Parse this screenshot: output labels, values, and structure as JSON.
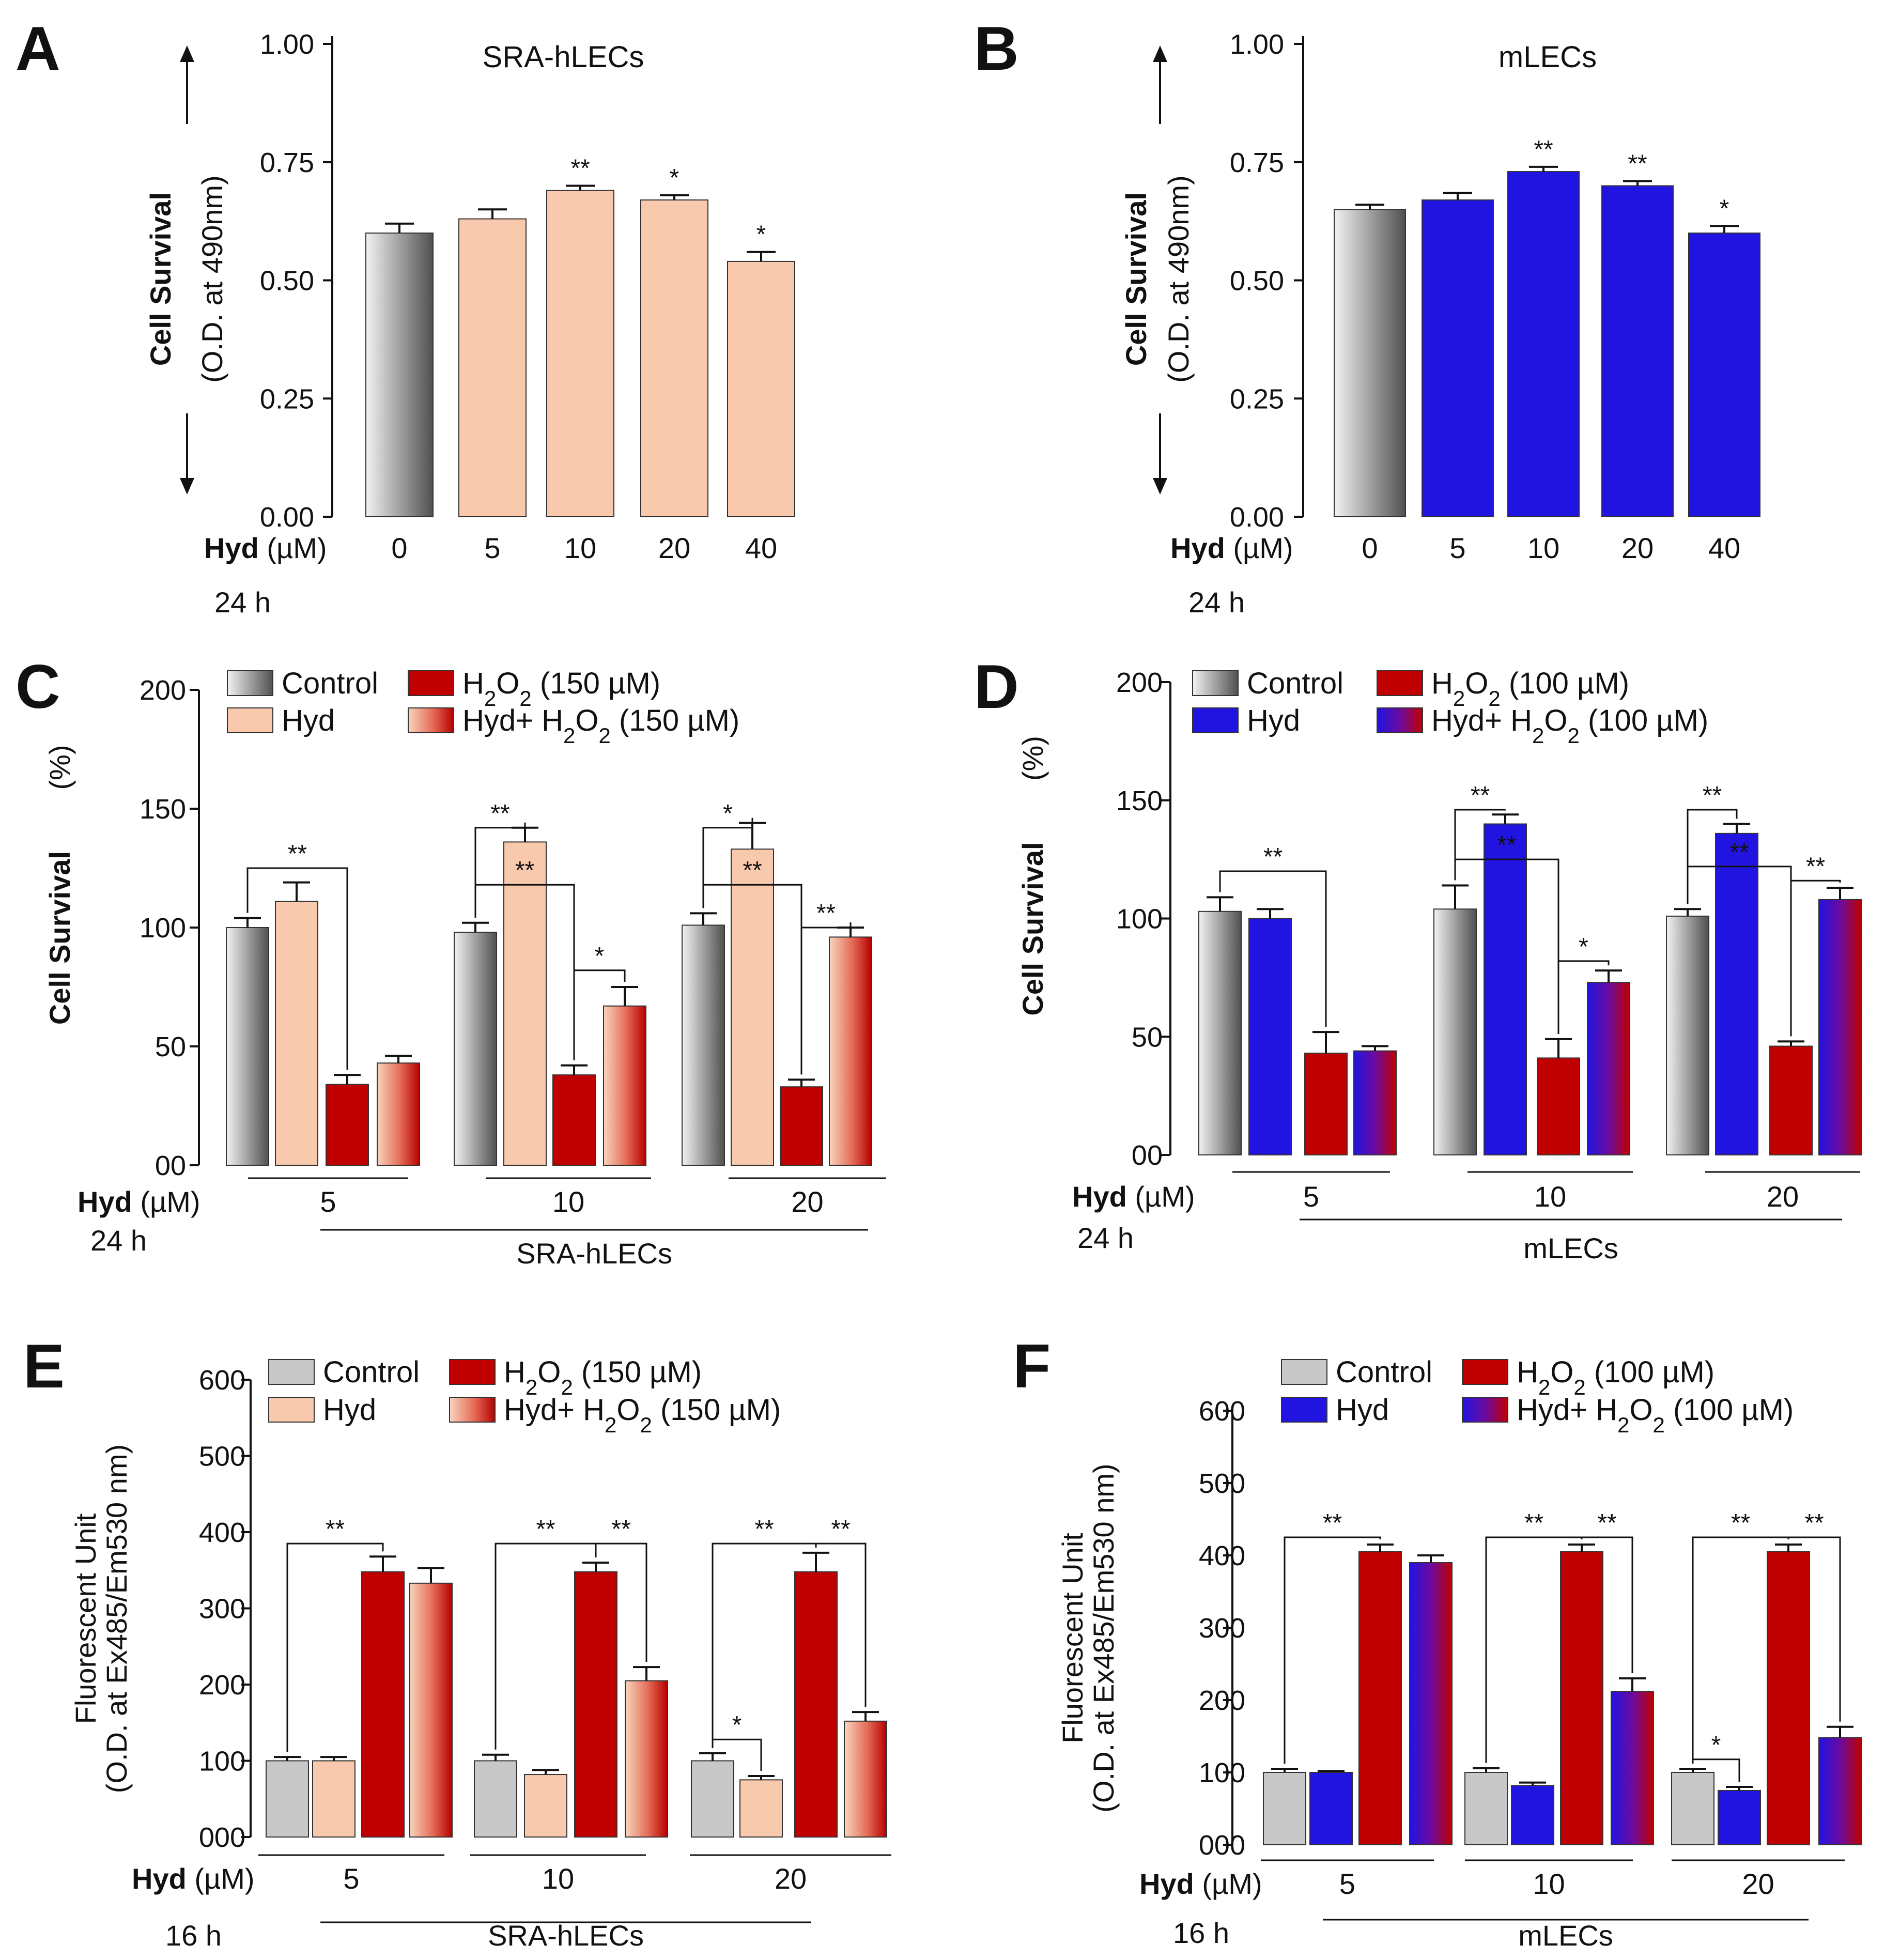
{
  "figure": {
    "panels": [
      {
        "letter": "A",
        "title": "SRA-hLECs",
        "ylabel_bold": "Cell Survival",
        "ylabel_sub": "(O.D. at 490nm)",
        "xlabel_bold": "Hyd",
        "xlabel_unit": "(µM)",
        "time": "24 h"
      },
      {
        "letter": "B",
        "title": "mLECs",
        "ylabel_bold": "Cell Survival",
        "ylabel_sub": "(O.D. at 490nm)",
        "xlabel_bold": "Hyd",
        "xlabel_unit": "(µM)",
        "time": "24 h"
      },
      {
        "letter": "C",
        "cell_line": "SRA-hLECs",
        "ylabel_bold": "Cell Survival",
        "ylabel_sub": "(%)",
        "xlabel_bold": "Hyd",
        "xlabel_unit": "(µM)",
        "time": "24 h"
      },
      {
        "letter": "D",
        "cell_line": "mLECs",
        "ylabel_bold": "Cell Survival",
        "ylabel_sub": "(%)",
        "xlabel_bold": "Hyd",
        "xlabel_unit": "(µM)",
        "time": "24 h"
      },
      {
        "letter": "E",
        "cell_line": "SRA-hLECs",
        "ylabel_line1": "Fluorescent Unit",
        "ylabel_line2": "(O.D. at Ex485/Em530 nm)",
        "xlabel_bold": "Hyd",
        "xlabel_unit": "(µM)",
        "time": "16 h"
      },
      {
        "letter": "F",
        "cell_line": "mLECs",
        "ylabel_line1": "Fluorescent Unit",
        "ylabel_line2": "(O.D. at Ex485/Em530 nm)",
        "xlabel_bold": "Hyd",
        "xlabel_unit": "(µM)",
        "time": "16 h"
      }
    ]
  },
  "chart_data": [
    {
      "type": "bar",
      "panel": "A",
      "title": "SRA-hLECs",
      "xlabel": "Hyd (µM)",
      "ylabel": "Cell Survival (O.D. at 490nm)",
      "ylim": [
        0,
        1.0
      ],
      "yticks": [
        "0.00",
        "0.25",
        "0.50",
        "0.75",
        "1.00"
      ],
      "categories": [
        "0",
        "5",
        "10",
        "20",
        "40"
      ],
      "values": [
        0.6,
        0.63,
        0.69,
        0.67,
        0.54
      ],
      "errors": [
        0.02,
        0.02,
        0.01,
        0.01,
        0.02
      ],
      "significance": [
        "",
        "",
        "**",
        "*",
        "*"
      ],
      "colors": [
        "gray-gradient",
        "#f8c9ad",
        "#f8c9ad",
        "#f8c9ad",
        "#f8c9ad"
      ]
    },
    {
      "type": "bar",
      "panel": "B",
      "title": "mLECs",
      "xlabel": "Hyd (µM)",
      "ylabel": "Cell Survival (O.D. at 490nm)",
      "ylim": [
        0,
        1.0
      ],
      "yticks": [
        "0.00",
        "0.25",
        "0.50",
        "0.75",
        "1.00"
      ],
      "categories": [
        "0",
        "5",
        "10",
        "20",
        "40"
      ],
      "values": [
        0.65,
        0.67,
        0.73,
        0.7,
        0.6
      ],
      "errors": [
        0.01,
        0.015,
        0.01,
        0.01,
        0.015
      ],
      "significance": [
        "",
        "",
        "**",
        "**",
        "*"
      ],
      "colors": [
        "gray-gradient",
        "#2214e0",
        "#2214e0",
        "#2214e0",
        "#2214e0"
      ]
    },
    {
      "type": "bar",
      "panel": "C",
      "cell_line": "SRA-hLECs",
      "xlabel": "Hyd (µM)",
      "ylabel": "Cell Survival (%)",
      "ylim": [
        0,
        200
      ],
      "yticks": [
        "00",
        "50",
        "100",
        "150",
        "200"
      ],
      "categories": [
        "5",
        "10",
        "20"
      ],
      "series": [
        {
          "name": "Control",
          "values": [
            100,
            98,
            101
          ],
          "errors": [
            4,
            4,
            5
          ]
        },
        {
          "name": "Hyd",
          "values": [
            111,
            136,
            133
          ],
          "errors": [
            8,
            6,
            11
          ]
        },
        {
          "name": "H2O2 (150 µM)",
          "values": [
            34,
            38,
            33
          ],
          "errors": [
            4,
            4,
            3
          ]
        },
        {
          "name": "Hyd+ H2O2 (150 µM)",
          "values": [
            43,
            67,
            96
          ],
          "errors": [
            3,
            8,
            4
          ]
        }
      ],
      "legend": [
        "Control",
        "Hyd",
        "H2O2 (150 µM)",
        "Hyd+ H2O2 (150 µM)"
      ],
      "significance_labels": [
        "**",
        "**",
        "**",
        "*",
        "*",
        "**",
        "**"
      ]
    },
    {
      "type": "bar",
      "panel": "D",
      "cell_line": "mLECs",
      "xlabel": "Hyd (µM)",
      "ylabel": "Cell Survival (%)",
      "ylim": [
        0,
        200
      ],
      "yticks": [
        "00",
        "50",
        "100",
        "150",
        "200"
      ],
      "categories": [
        "5",
        "10",
        "20"
      ],
      "series": [
        {
          "name": "Control",
          "values": [
            103,
            104,
            101
          ],
          "errors": [
            6,
            10,
            3
          ]
        },
        {
          "name": "Hyd",
          "values": [
            100,
            140,
            136
          ],
          "errors": [
            4,
            4,
            4
          ]
        },
        {
          "name": "H2O2 (100 µM)",
          "values": [
            43,
            41,
            46
          ],
          "errors": [
            9,
            8,
            2
          ]
        },
        {
          "name": "Hyd+ H2O2 (100 µM)",
          "values": [
            44,
            73,
            108
          ],
          "errors": [
            2,
            5,
            5
          ]
        }
      ],
      "legend": [
        "Control",
        "Hyd",
        "H2O2 (100 µM)",
        "Hyd+ H2O2 (100 µM)"
      ],
      "significance_labels": [
        "**",
        "**",
        "**",
        "*",
        "**",
        "**",
        "**"
      ]
    },
    {
      "type": "bar",
      "panel": "E",
      "cell_line": "SRA-hLECs",
      "xlabel": "Hyd (µM)",
      "ylabel": "Fluorescent Unit (O.D. at Ex485/Em530 nm)",
      "ylim": [
        0,
        600
      ],
      "yticks": [
        "000",
        "100",
        "200",
        "300",
        "400",
        "500",
        "600"
      ],
      "categories": [
        "5",
        "10",
        "20"
      ],
      "series": [
        {
          "name": "Control",
          "values": [
            100,
            100,
            100
          ],
          "errors": [
            5,
            8,
            10
          ]
        },
        {
          "name": "Hyd",
          "values": [
            100,
            82,
            75
          ],
          "errors": [
            5,
            6,
            5
          ]
        },
        {
          "name": "H2O2 (150 µM)",
          "values": [
            348,
            348,
            348
          ],
          "errors": [
            20,
            12,
            25
          ]
        },
        {
          "name": "Hyd+ H2O2 (150 µM)",
          "values": [
            333,
            205,
            152
          ],
          "errors": [
            20,
            18,
            12
          ]
        }
      ],
      "legend": [
        "Control",
        "Hyd",
        "H2O2 (150 µM)",
        "Hyd+ H2O2 (150 µM)"
      ],
      "significance_labels": [
        "**",
        "**",
        "**",
        "**",
        "*",
        "**"
      ]
    },
    {
      "type": "bar",
      "panel": "F",
      "cell_line": "mLECs",
      "xlabel": "Hyd (µM)",
      "ylabel": "Fluorescent Unit (O.D. at Ex485/Em530 nm)",
      "ylim": [
        0,
        600
      ],
      "yticks": [
        "000",
        "100",
        "200",
        "300",
        "400",
        "500",
        "600"
      ],
      "categories": [
        "5",
        "10",
        "20"
      ],
      "series": [
        {
          "name": "Control",
          "values": [
            100,
            100,
            100
          ],
          "errors": [
            5,
            6,
            5
          ]
        },
        {
          "name": "Hyd",
          "values": [
            100,
            82,
            75
          ],
          "errors": [
            2,
            4,
            5
          ]
        },
        {
          "name": "H2O2 (100 µM)",
          "values": [
            405,
            405,
            405
          ],
          "errors": [
            10,
            10,
            10
          ]
        },
        {
          "name": "Hyd+ H2O2 (100 µM)",
          "values": [
            390,
            212,
            148
          ],
          "errors": [
            10,
            18,
            15
          ]
        }
      ],
      "legend": [
        "Control",
        "Hyd",
        "H2O2 (100 µM)",
        "Hyd+ H2O2 (100 µM)"
      ],
      "significance_labels": [
        "**",
        "**",
        "**",
        "**",
        "*",
        "**"
      ]
    }
  ]
}
